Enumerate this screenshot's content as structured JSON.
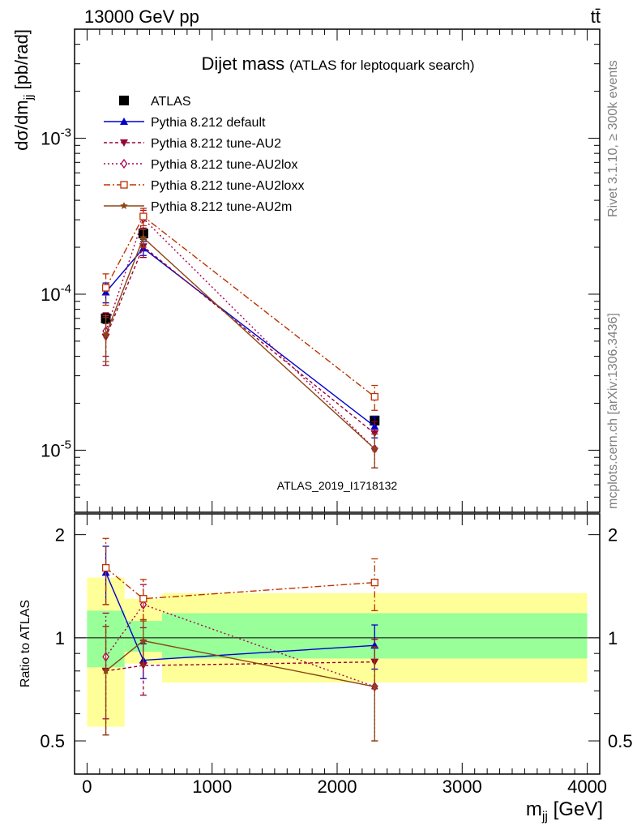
{
  "header": {
    "left": "13000 GeV pp",
    "right": "tt̄"
  },
  "side_texts": {
    "rivet": "Rivet 3.1.10, ≥ 300k events",
    "mcplots": "mcplots.cern.ch [arXiv:1306.3436]"
  },
  "watermark": "ATLAS_2019_I1718132",
  "chart_data": {
    "type": "line",
    "title": "Dijet mass",
    "subtitle": "(ATLAS for leptoquark search)",
    "xlabel": "m_jj [GeV]",
    "ylabel": "dσ/dm_jj [pb/rad]",
    "ratio_ylabel": "Ratio to ATLAS",
    "xlim": [
      -100,
      4100
    ],
    "ylim": [
      4e-06,
      0.005
    ],
    "yscale": "log",
    "ratio_ylim": [
      0.4,
      2.3
    ],
    "ratio_yscale": "log",
    "x_ticks": [
      "0",
      "1000",
      "2000",
      "3000",
      "4000"
    ],
    "y_ticks": [
      "10^-5",
      "10^-4",
      "10^-3"
    ],
    "ratio_ticks": [
      "0.5",
      "1",
      "2"
    ],
    "x": [
      150,
      450,
      2300
    ],
    "bins": [
      [
        0,
        300
      ],
      [
        300,
        600
      ],
      [
        600,
        4000
      ]
    ],
    "band_inner": [
      [
        0.82,
        1.2
      ],
      [
        0.91,
        1.12
      ],
      [
        0.87,
        1.18
      ]
    ],
    "band_outer": [
      [
        0.55,
        1.5
      ],
      [
        0.84,
        1.3
      ],
      [
        0.74,
        1.35
      ]
    ],
    "legend_position": "top-left",
    "series": [
      {
        "name": "ATLAS",
        "color": "#000000",
        "marker": "square-filled",
        "dash": "",
        "values": [
          7e-05,
          0.000245,
          1.55e-05
        ],
        "errors": [
          5e-06,
          2e-05,
          1e-06
        ],
        "ratio": null,
        "ratio_err": null
      },
      {
        "name": "Pythia 8.212 default",
        "color": "#0000cc",
        "marker": "triangle-up-filled",
        "dash": "",
        "values": [
          0.000103,
          0.000197,
          1.42e-05
        ],
        "errors": [
          1.5e-05,
          2e-05,
          2.2e-06
        ],
        "ratio": [
          1.55,
          0.86,
          0.95
        ],
        "ratio_err": [
          0.3,
          0.1,
          0.14
        ]
      },
      {
        "name": "Pythia 8.212 tune-AU2",
        "color": "#990033",
        "marker": "triangle-down-filled",
        "dash": "4,3",
        "values": [
          5.3e-05,
          0.000202,
          1.28e-05
        ],
        "errors": [
          1.8e-05,
          3e-05,
          2.5e-06
        ],
        "ratio": [
          0.8,
          0.83,
          0.85
        ],
        "ratio_err": [
          0.28,
          0.15,
          0.14
        ]
      },
      {
        "name": "Pythia 8.212 tune-AU2lox",
        "color": "#aa0055",
        "marker": "diamond-open",
        "dash": "2,3",
        "values": [
          5.8e-05,
          0.000305,
          1.02e-05
        ],
        "errors": [
          1.8e-05,
          4e-05,
          2.5e-06
        ],
        "ratio": [
          0.88,
          1.25,
          0.72
        ],
        "ratio_err": [
          0.3,
          0.18,
          0.22
        ]
      },
      {
        "name": "Pythia 8.212 tune-AU2loxx",
        "color": "#bb3300",
        "marker": "square-open",
        "dash": "8,3,2,3",
        "values": [
          0.00011,
          0.000315,
          2.2e-05
        ],
        "errors": [
          2.5e-05,
          4e-05,
          4e-06
        ],
        "ratio": [
          1.6,
          1.3,
          1.45
        ],
        "ratio_err": [
          0.35,
          0.18,
          0.25
        ]
      },
      {
        "name": "Pythia 8.212 tune-AU2m",
        "color": "#8b4513",
        "marker": "star-filled",
        "dash": "",
        "values": [
          5.5e-05,
          0.00023,
          1.02e-05
        ],
        "errors": [
          1.8e-05,
          3e-05,
          2.5e-06
        ],
        "ratio": [
          0.8,
          0.98,
          0.72
        ],
        "ratio_err": [
          0.28,
          0.15,
          0.22
        ]
      }
    ]
  }
}
